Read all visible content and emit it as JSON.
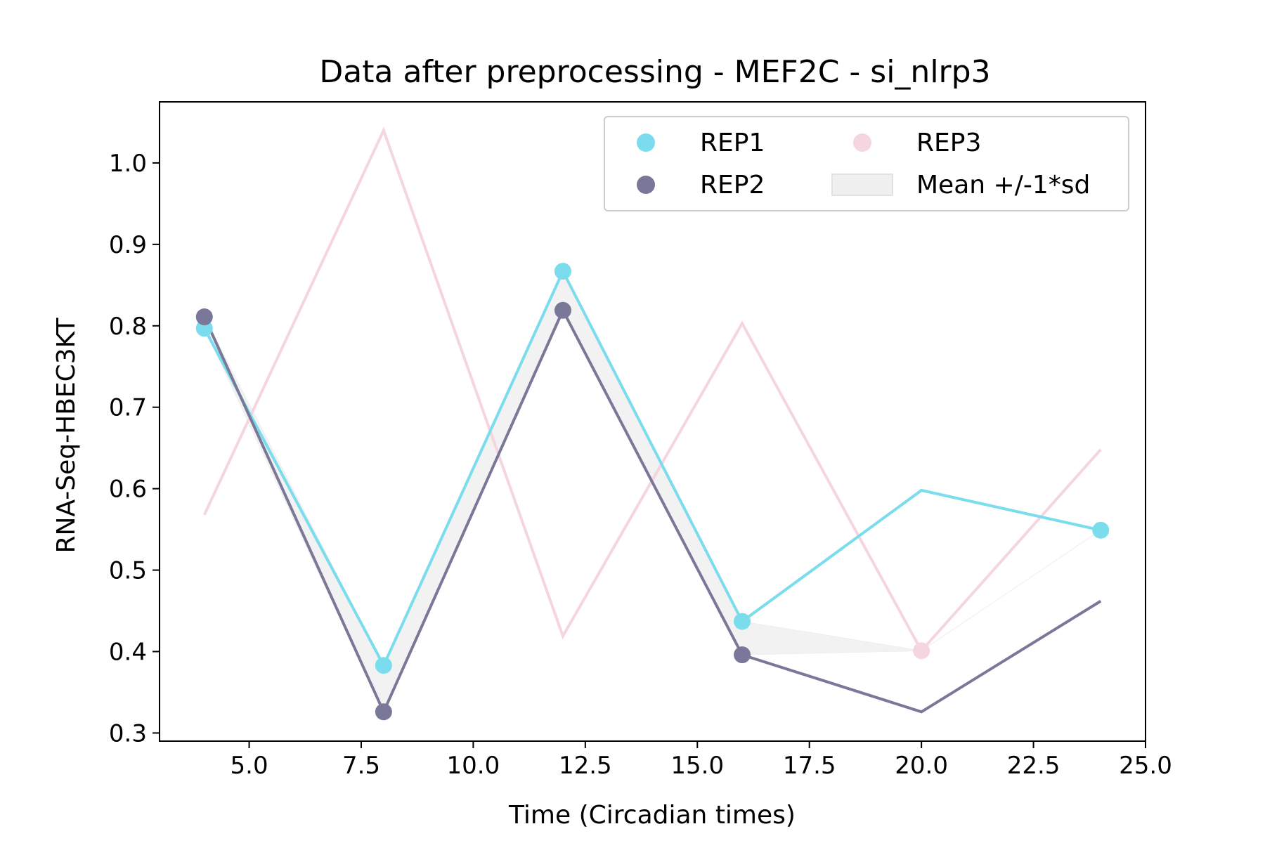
{
  "chart_data": {
    "type": "line",
    "title": "Data after preprocessing - MEF2C - si_nlrp3",
    "xlabel": "Time (Circadian times)",
    "ylabel": "RNA-Seq-HBEC3KT",
    "xlim": [
      3.0,
      25.0
    ],
    "ylim": [
      0.29,
      1.075
    ],
    "x_ticks": [
      5.0,
      7.5,
      10.0,
      12.5,
      15.0,
      17.5,
      20.0,
      22.5,
      25.0
    ],
    "x_tick_labels": [
      "5.0",
      "7.5",
      "10.0",
      "12.5",
      "15.0",
      "17.5",
      "20.0",
      "22.5",
      "25.0"
    ],
    "y_ticks": [
      0.3,
      0.4,
      0.5,
      0.6,
      0.7,
      0.8,
      0.9,
      1.0
    ],
    "y_tick_labels": [
      "0.3",
      "0.4",
      "0.5",
      "0.6",
      "0.7",
      "0.8",
      "0.9",
      "1.0"
    ],
    "grid": false,
    "legend_position": "top-right",
    "x": [
      4,
      8,
      12,
      16,
      20,
      24
    ],
    "series": [
      {
        "name": "REP1",
        "color": "#7adcec",
        "values": [
          0.797,
          0.383,
          0.867,
          0.437,
          0.598,
          0.549
        ],
        "markers": [
          true,
          true,
          true,
          true,
          false,
          true
        ]
      },
      {
        "name": "REP2",
        "color": "#7a7898",
        "values": [
          0.811,
          0.326,
          0.819,
          0.396,
          0.326,
          0.462
        ],
        "markers": [
          true,
          true,
          true,
          true,
          false,
          false
        ]
      },
      {
        "name": "REP3",
        "color": "#f5d5df",
        "values": [
          0.568,
          1.04,
          0.419,
          0.803,
          0.401,
          0.648
        ],
        "markers": [
          false,
          false,
          false,
          false,
          true,
          false
        ]
      }
    ],
    "band": {
      "name": "Mean +/-1*sd",
      "color": "#eeeeee",
      "lower": [
        0.797,
        0.326,
        0.819,
        0.396,
        0.401,
        0.549
      ],
      "upper": [
        0.811,
        0.383,
        0.867,
        0.437,
        0.401,
        0.549
      ]
    }
  }
}
